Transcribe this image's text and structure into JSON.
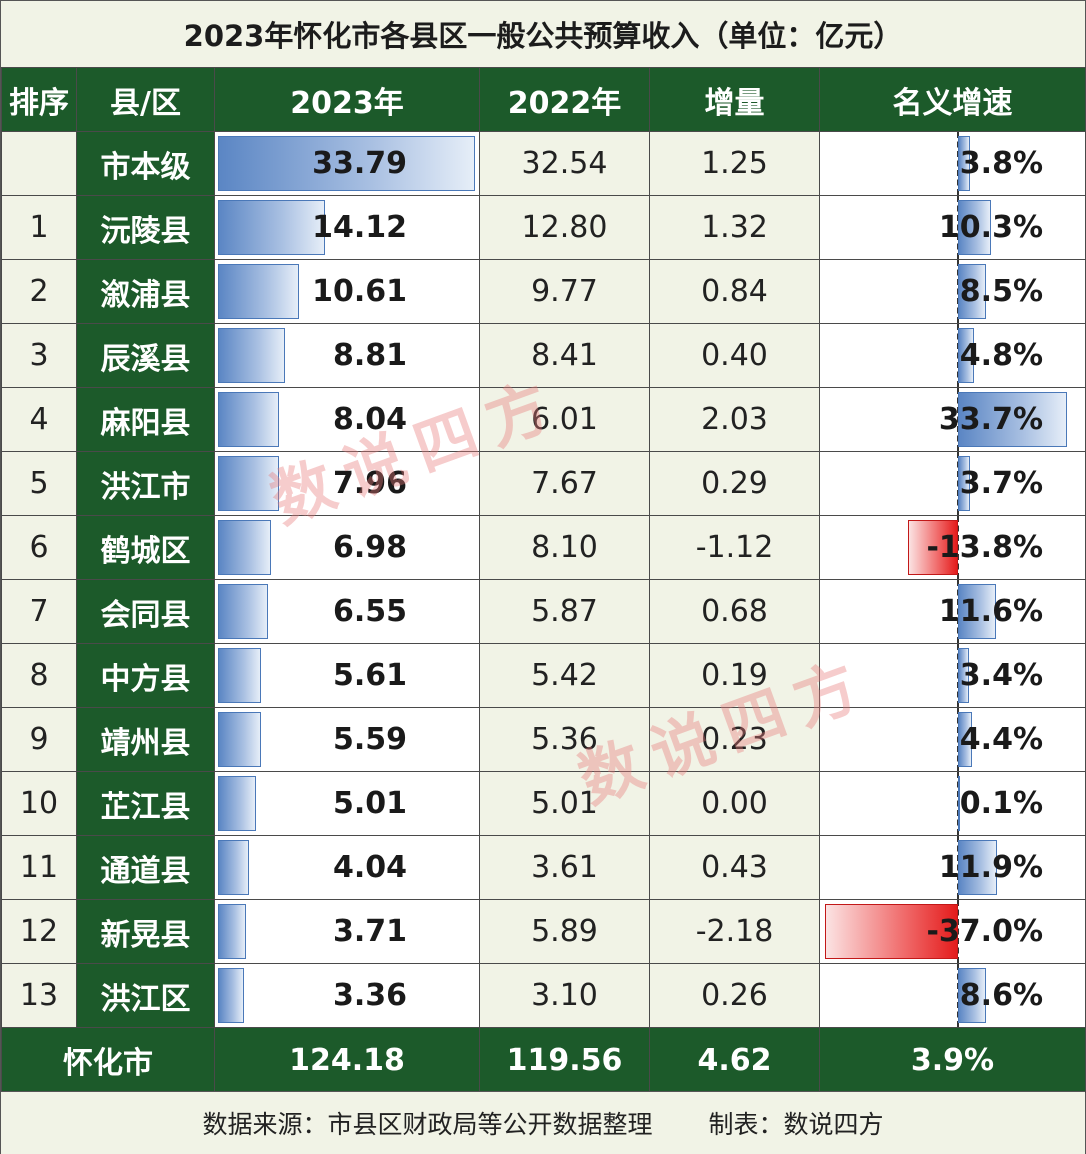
{
  "title": "2023年怀化市各县区一般公共预算收入（单位：亿元）",
  "headers": {
    "rank": "排序",
    "region": "县/区",
    "y2023": "2023年",
    "y2022": "2022年",
    "increase": "增量",
    "growth": "名义增速"
  },
  "colors": {
    "header_green": "#1c5a2a",
    "background": "#f1f3e6",
    "bar_blue": "#5b86c4",
    "bar_red": "#e41c1c"
  },
  "chart_data": {
    "type": "table",
    "columns": [
      "排序",
      "县/区",
      "2023年",
      "2022年",
      "增量",
      "名义增速"
    ],
    "rows": [
      {
        "rank": "",
        "name": "市本级",
        "y2023": "33.79",
        "y2022": "32.54",
        "inc": "1.25",
        "growth": "3.8%",
        "v2023": 33.79,
        "g": 3.8
      },
      {
        "rank": "1",
        "name": "沅陵县",
        "y2023": "14.12",
        "y2022": "12.80",
        "inc": "1.32",
        "growth": "10.3%",
        "v2023": 14.12,
        "g": 10.3
      },
      {
        "rank": "2",
        "name": "溆浦县",
        "y2023": "10.61",
        "y2022": "9.77",
        "inc": "0.84",
        "growth": "8.5%",
        "v2023": 10.61,
        "g": 8.5
      },
      {
        "rank": "3",
        "name": "辰溪县",
        "y2023": "8.81",
        "y2022": "8.41",
        "inc": "0.40",
        "growth": "4.8%",
        "v2023": 8.81,
        "g": 4.8
      },
      {
        "rank": "4",
        "name": "麻阳县",
        "y2023": "8.04",
        "y2022": "6.01",
        "inc": "2.03",
        "growth": "33.7%",
        "v2023": 8.04,
        "g": 33.7
      },
      {
        "rank": "5",
        "name": "洪江市",
        "y2023": "7.96",
        "y2022": "7.67",
        "inc": "0.29",
        "growth": "3.7%",
        "v2023": 7.96,
        "g": 3.7
      },
      {
        "rank": "6",
        "name": "鹤城区",
        "y2023": "6.98",
        "y2022": "8.10",
        "inc": "-1.12",
        "growth": "-13.8%",
        "v2023": 6.98,
        "g": -13.8
      },
      {
        "rank": "7",
        "name": "会同县",
        "y2023": "6.55",
        "y2022": "5.87",
        "inc": "0.68",
        "growth": "11.6%",
        "v2023": 6.55,
        "g": 11.6
      },
      {
        "rank": "8",
        "name": "中方县",
        "y2023": "5.61",
        "y2022": "5.42",
        "inc": "0.19",
        "growth": "3.4%",
        "v2023": 5.61,
        "g": 3.4
      },
      {
        "rank": "9",
        "name": "靖州县",
        "y2023": "5.59",
        "y2022": "5.36",
        "inc": "0.23",
        "growth": "4.4%",
        "v2023": 5.59,
        "g": 4.4
      },
      {
        "rank": "10",
        "name": "芷江县",
        "y2023": "5.01",
        "y2022": "5.01",
        "inc": "0.00",
        "growth": "0.1%",
        "v2023": 5.01,
        "g": 0.1
      },
      {
        "rank": "11",
        "name": "通道县",
        "y2023": "4.04",
        "y2022": "3.61",
        "inc": "0.43",
        "growth": "11.9%",
        "v2023": 4.04,
        "g": 11.9
      },
      {
        "rank": "12",
        "name": "新晃县",
        "y2023": "3.71",
        "y2022": "5.89",
        "inc": "-2.18",
        "growth": "-37.0%",
        "v2023": 3.71,
        "g": -37.0
      },
      {
        "rank": "13",
        "name": "洪江区",
        "y2023": "3.36",
        "y2022": "3.10",
        "inc": "0.26",
        "growth": "8.6%",
        "v2023": 3.36,
        "g": 8.6
      }
    ],
    "total": {
      "name": "怀化市",
      "y2023": "124.18",
      "y2022": "119.56",
      "inc": "4.62",
      "growth": "3.9%"
    }
  },
  "footer": {
    "source": "数据来源：市县区财政局等公开数据整理",
    "maker": "制表：数说四方"
  },
  "watermark": "数说四方"
}
